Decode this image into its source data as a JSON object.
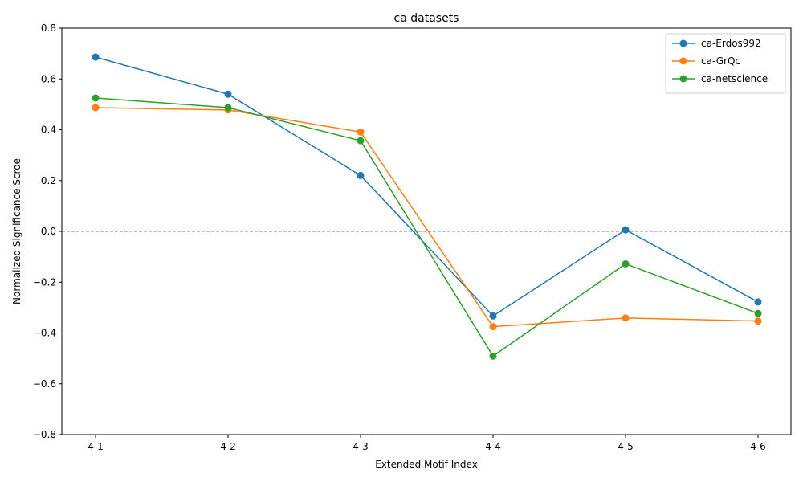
{
  "chart_data": {
    "type": "line",
    "title": "ca datasets",
    "xlabel": "Extended Motif Index",
    "ylabel": "Normalized Significance Scroe",
    "categories": [
      "4-1",
      "4-2",
      "4-3",
      "4-4",
      "4-5",
      "4-6"
    ],
    "ylim": [
      -0.8,
      0.8
    ],
    "yticks": [
      "−0.8",
      "−0.6",
      "−0.4",
      "−0.2",
      "0.0",
      "0.2",
      "0.4",
      "0.6",
      "0.8"
    ],
    "ytick_values": [
      -0.8,
      -0.6,
      -0.4,
      -0.2,
      0.0,
      0.2,
      0.4,
      0.6,
      0.8
    ],
    "reference_line": 0.0,
    "grid": false,
    "legend_position": "top-right",
    "series": [
      {
        "name": "ca-Erdos992",
        "color": "#1f77b4",
        "values": [
          0.686,
          0.54,
          0.22,
          -0.333,
          0.006,
          -0.278
        ]
      },
      {
        "name": "ca-GrQc",
        "color": "#ff7f0e",
        "values": [
          0.487,
          0.478,
          0.391,
          -0.375,
          -0.341,
          -0.353
        ]
      },
      {
        "name": "ca-netscience",
        "color": "#2ca02c",
        "values": [
          0.525,
          0.487,
          0.357,
          -0.491,
          -0.128,
          -0.323
        ]
      }
    ]
  }
}
